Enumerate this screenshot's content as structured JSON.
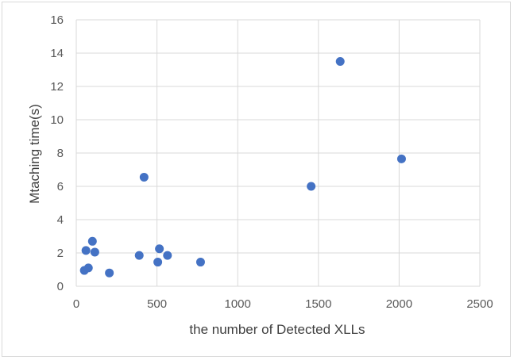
{
  "chart_data": {
    "type": "scatter",
    "title": "",
    "xlabel": "the number of Detected XLLs",
    "ylabel": "Mtaching time(s)",
    "xlim": [
      0,
      2500
    ],
    "ylim": [
      0,
      16
    ],
    "x_ticks": [
      0,
      500,
      1000,
      1500,
      2000,
      2500
    ],
    "y_ticks": [
      0,
      2,
      4,
      6,
      8,
      10,
      12,
      14,
      16
    ],
    "grid": true,
    "legend": "none",
    "marker_color": "#4472C4",
    "points": [
      {
        "x": 50,
        "y": 0.95
      },
      {
        "x": 60,
        "y": 2.15
      },
      {
        "x": 75,
        "y": 1.1
      },
      {
        "x": 100,
        "y": 2.7
      },
      {
        "x": 115,
        "y": 2.05
      },
      {
        "x": 205,
        "y": 0.8
      },
      {
        "x": 390,
        "y": 1.85
      },
      {
        "x": 420,
        "y": 6.55
      },
      {
        "x": 505,
        "y": 1.45
      },
      {
        "x": 515,
        "y": 2.25
      },
      {
        "x": 565,
        "y": 1.85
      },
      {
        "x": 770,
        "y": 1.45
      },
      {
        "x": 1455,
        "y": 6.0
      },
      {
        "x": 1635,
        "y": 13.5
      },
      {
        "x": 2015,
        "y": 7.65
      }
    ]
  }
}
